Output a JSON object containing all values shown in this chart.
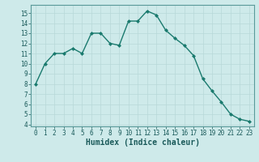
{
  "x": [
    0,
    1,
    2,
    3,
    4,
    5,
    6,
    7,
    8,
    9,
    10,
    11,
    12,
    13,
    14,
    15,
    16,
    17,
    18,
    19,
    20,
    21,
    22,
    23
  ],
  "y": [
    8,
    10,
    11,
    11,
    11.5,
    11,
    13,
    13,
    12,
    11.8,
    14.2,
    14.2,
    15.2,
    14.8,
    13.3,
    12.5,
    11.8,
    10.8,
    8.5,
    7.3,
    6.2,
    5,
    4.5,
    4.3
  ],
  "line_color": "#1a7a6e",
  "marker": "D",
  "marker_size": 2,
  "line_width": 1.0,
  "bg_color": "#ceeaea",
  "grid_color": "#b8d8d8",
  "xlabel": "Humidex (Indice chaleur)",
  "xlim": [
    -0.5,
    23.5
  ],
  "ylim": [
    3.8,
    15.8
  ],
  "yticks": [
    4,
    5,
    6,
    7,
    8,
    9,
    10,
    11,
    12,
    13,
    14,
    15
  ],
  "xticks": [
    0,
    1,
    2,
    3,
    4,
    5,
    6,
    7,
    8,
    9,
    10,
    11,
    12,
    13,
    14,
    15,
    16,
    17,
    18,
    19,
    20,
    21,
    22,
    23
  ],
  "tick_label_size": 5.5,
  "xlabel_size": 7,
  "xlabel_weight": "bold"
}
